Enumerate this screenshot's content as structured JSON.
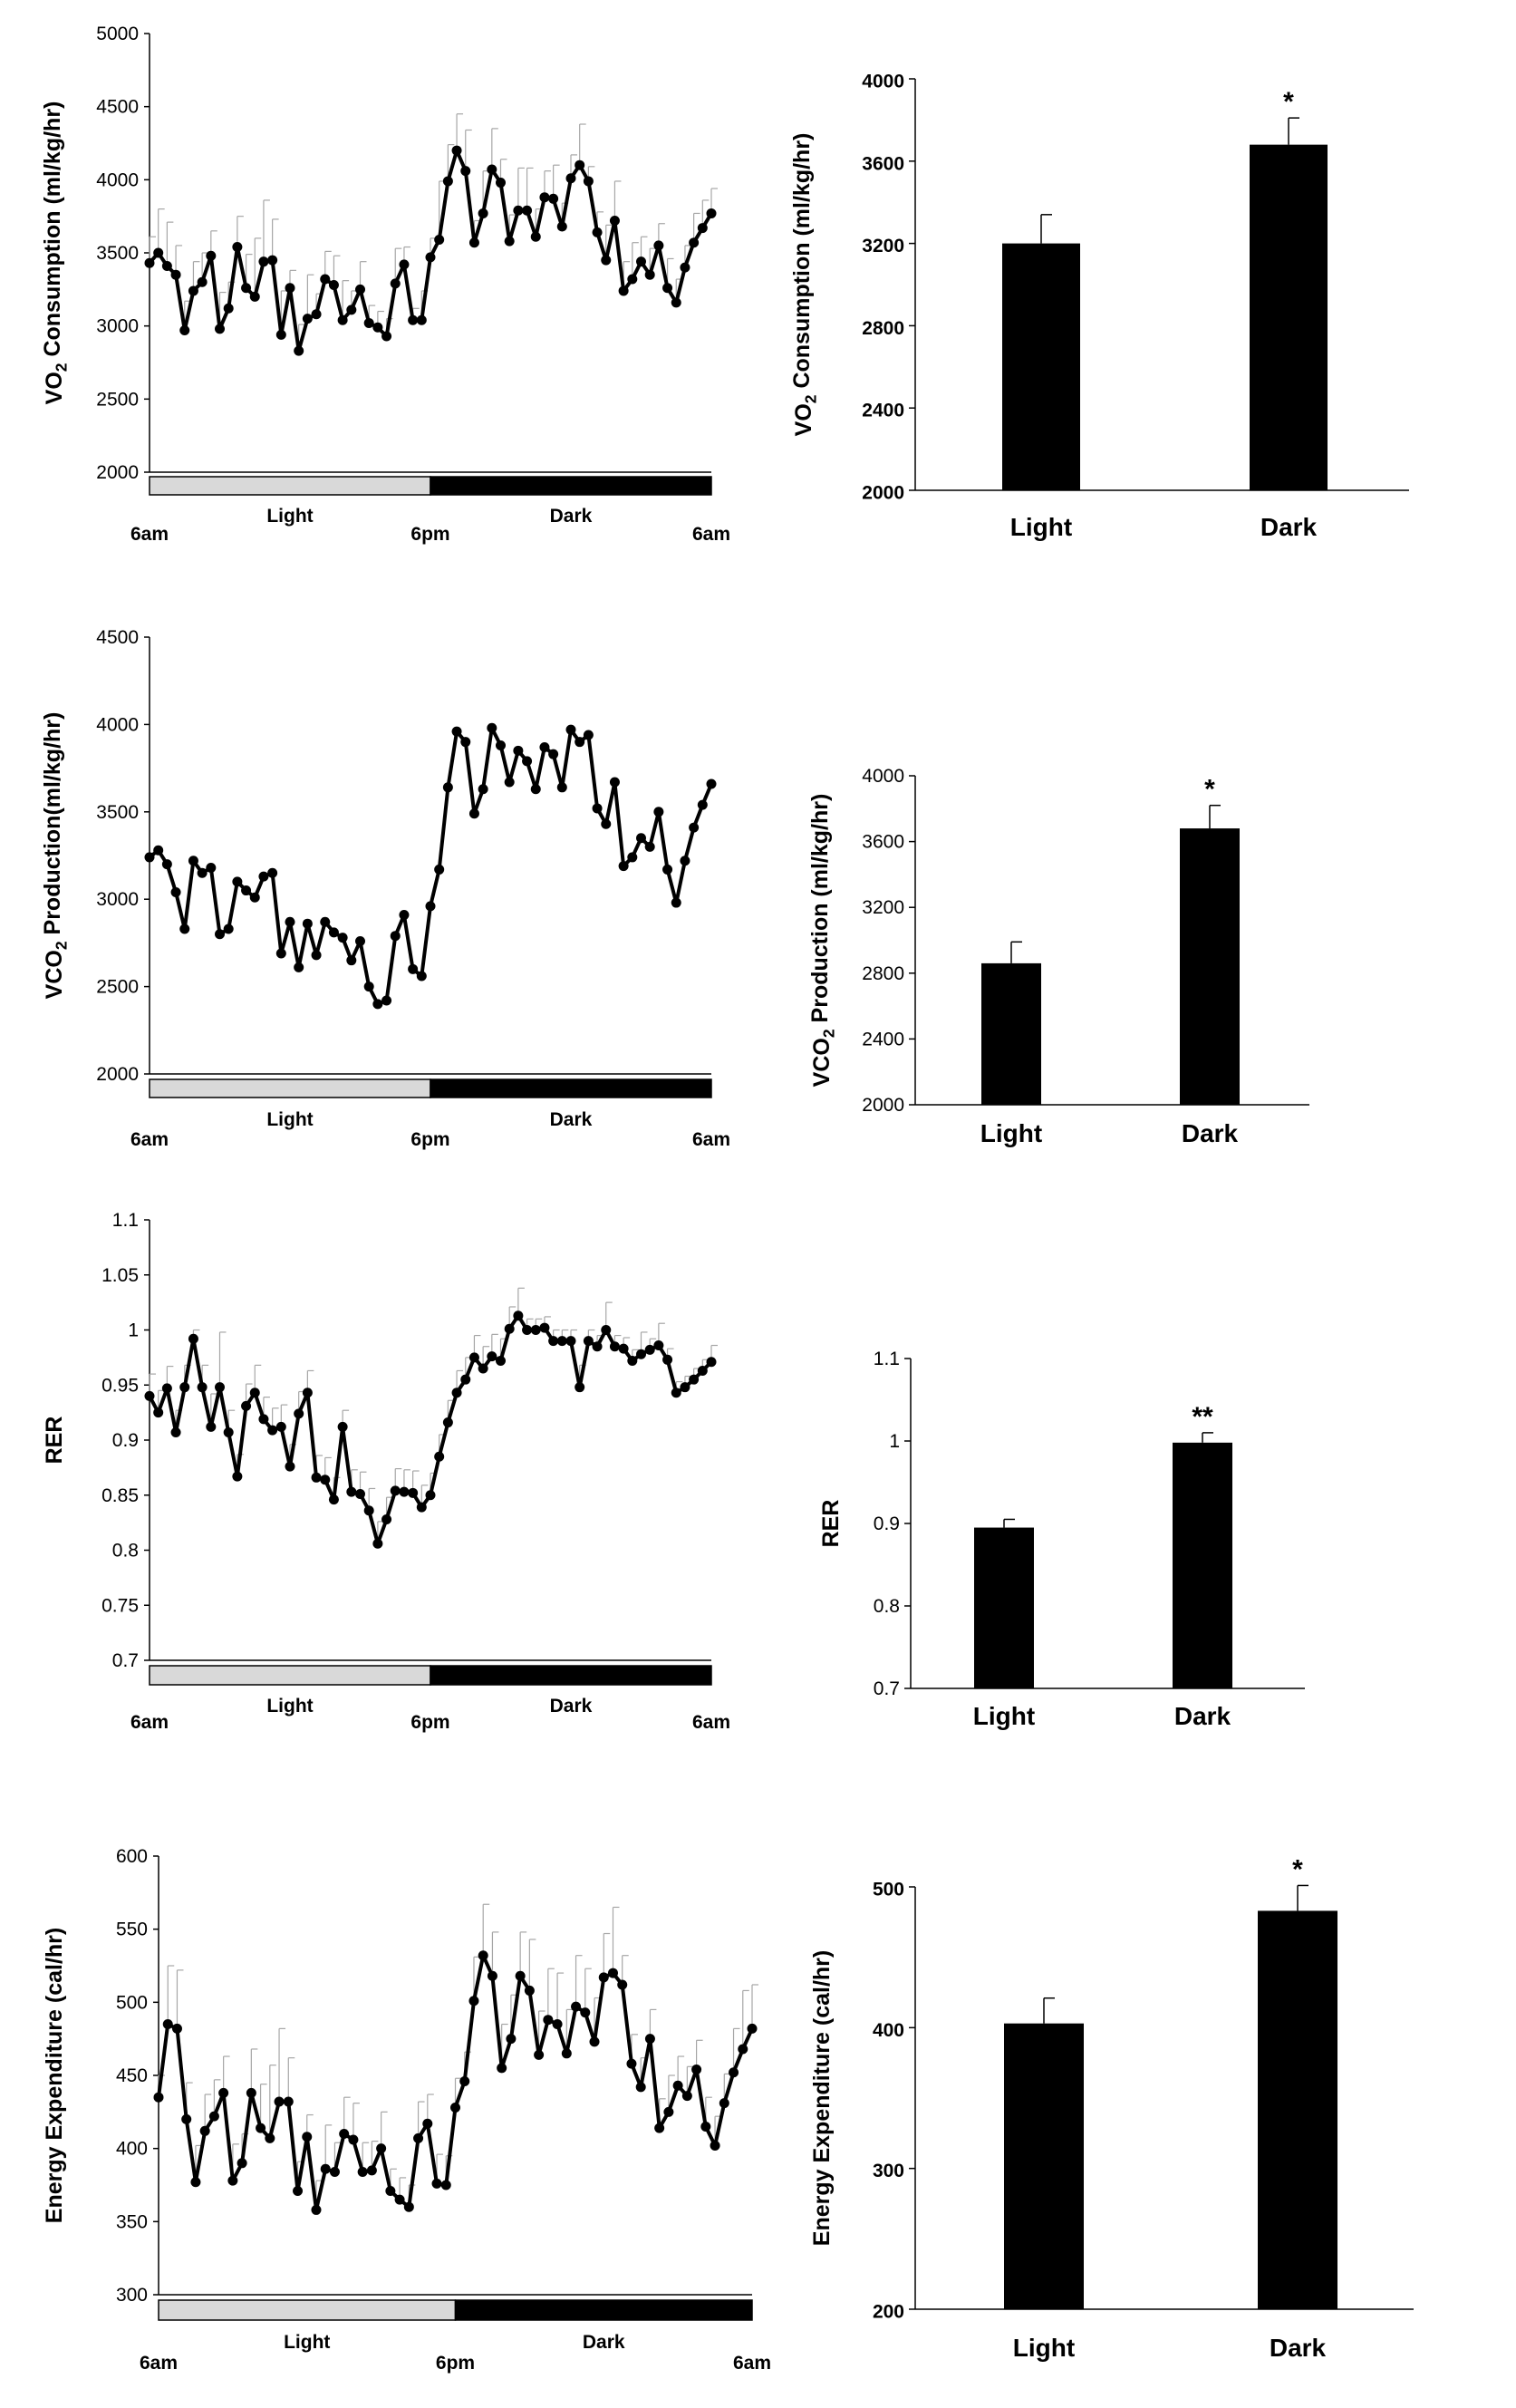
{
  "chart_data": [
    {
      "id": "vo2_time",
      "type": "line",
      "ylabel": "VO2 Consumption (ml/kg/hr)",
      "ylim": [
        2000,
        5000
      ],
      "yticks": [
        2000,
        2500,
        3000,
        3500,
        4000,
        4500,
        5000
      ],
      "x_labels": [
        "6am",
        "6pm",
        "6am"
      ],
      "phases": [
        "Light",
        "Dark"
      ],
      "error_bars": "upper",
      "values": [
        3430,
        3500,
        3410,
        3350,
        2970,
        3240,
        3300,
        3480,
        2980,
        3120,
        3540,
        3260,
        3200,
        3440,
        3450,
        2940,
        3260,
        2830,
        3050,
        3080,
        3320,
        3280,
        3040,
        3110,
        3250,
        3020,
        2990,
        2930,
        3290,
        3420,
        3040,
        3040,
        3470,
        3590,
        3990,
        4200,
        4060,
        3570,
        3770,
        4070,
        3980,
        3580,
        3790,
        3790,
        3610,
        3880,
        3870,
        3680,
        4010,
        4100,
        3990,
        3640,
        3450,
        3720,
        3240,
        3320,
        3440,
        3350,
        3550,
        3260,
        3160,
        3400,
        3570,
        3670,
        3770
      ],
      "errors": [
        180,
        300,
        300,
        200,
        200,
        200,
        200,
        170,
        250,
        180,
        210,
        230,
        400,
        420,
        280,
        300,
        120,
        180,
        300,
        140,
        190,
        200,
        270,
        130,
        190,
        120,
        110,
        120,
        240,
        120,
        80,
        200,
        130,
        400,
        250,
        250,
        280,
        150,
        290,
        280,
        160,
        180,
        290,
        290,
        190,
        180,
        230,
        160,
        160,
        280,
        100,
        140,
        240,
        270,
        200,
        250,
        170,
        180,
        150,
        200,
        160,
        150,
        200,
        190,
        170
      ]
    },
    {
      "id": "vo2_bar",
      "type": "bar",
      "ylabel": "VO2 Consumption (ml/kg/hr)",
      "ylim": [
        2000,
        4000
      ],
      "yticks": [
        2000,
        2400,
        2800,
        3200,
        3600,
        4000
      ],
      "categories": [
        "Light",
        "Dark"
      ],
      "values": [
        3200,
        3680
      ],
      "errors": [
        140,
        130
      ],
      "significance": [
        "",
        "*"
      ]
    },
    {
      "id": "vco2_time",
      "type": "line",
      "ylabel": "VCO2 Production(ml/kg/hr)",
      "ylim": [
        2000,
        4500
      ],
      "yticks": [
        2000,
        2500,
        3000,
        3500,
        4000,
        4500
      ],
      "x_labels": [
        "6am",
        "6pm",
        "6am"
      ],
      "phases": [
        "Light",
        "Dark"
      ],
      "error_bars": "upper",
      "values": [
        3240,
        3280,
        3200,
        3040,
        2830,
        3220,
        3150,
        3180,
        2800,
        2830,
        3100,
        3050,
        3010,
        3130,
        3150,
        2690,
        2870,
        2610,
        2860,
        2680,
        2870,
        2810,
        2780,
        2650,
        2760,
        2500,
        2400,
        2420,
        2790,
        2910,
        2600,
        2560,
        2960,
        3170,
        3640,
        3960,
        3900,
        3490,
        3630,
        3980,
        3880,
        3670,
        3850,
        3790,
        3630,
        3870,
        3830,
        3640,
        3970,
        3900,
        3940,
        3520,
        3430,
        3670,
        3190,
        3240,
        3350,
        3300,
        3500,
        3170,
        2980,
        3220,
        3410,
        3540,
        3660
      ]
    },
    {
      "id": "vco2_bar",
      "type": "bar",
      "ylabel": "VCO2 Production (ml/kg/hr)",
      "ylim": [
        2000,
        4000
      ],
      "yticks": [
        2000,
        2400,
        2800,
        3200,
        3600,
        4000
      ],
      "categories": [
        "Light",
        "Dark"
      ],
      "values": [
        2860,
        3680
      ],
      "errors": [
        130,
        140
      ],
      "significance": [
        "",
        "*"
      ]
    },
    {
      "id": "rer_time",
      "type": "line",
      "ylabel": "RER",
      "ylim": [
        0.7,
        1.1
      ],
      "yticks": [
        "0.7",
        "0.75",
        "0.8",
        "0.85",
        "0.9",
        "0.95",
        "1",
        "1.05",
        "1.1"
      ],
      "x_labels": [
        "6am",
        "6pm",
        "6am"
      ],
      "phases": [
        "Light",
        "Dark"
      ],
      "error_bars": "upper",
      "values": [
        0.94,
        0.925,
        0.947,
        0.907,
        0.948,
        0.992,
        0.948,
        0.912,
        0.948,
        0.907,
        0.867,
        0.931,
        0.943,
        0.919,
        0.909,
        0.912,
        0.876,
        0.924,
        0.943,
        0.866,
        0.864,
        0.846,
        0.912,
        0.853,
        0.851,
        0.836,
        0.806,
        0.828,
        0.854,
        0.853,
        0.852,
        0.839,
        0.85,
        0.885,
        0.916,
        0.943,
        0.955,
        0.975,
        0.965,
        0.976,
        0.972,
        1.001,
        1.013,
        1.0,
        1.0,
        1.002,
        0.99,
        0.99,
        0.99,
        0.948,
        0.99,
        0.985,
        1.0,
        0.985,
        0.983,
        0.972,
        0.978,
        0.982,
        0.986,
        0.973,
        0.943,
        0.948,
        0.955,
        0.963,
        0.971
      ],
      "errors": [
        0.02,
        0.02,
        0.02,
        0.02,
        0.02,
        0.008,
        0.02,
        0.03,
        0.05,
        0.02,
        0.02,
        0.02,
        0.025,
        0.02,
        0.02,
        0.02,
        0.02,
        0.02,
        0.02,
        0.02,
        0.02,
        0.02,
        0.015,
        0.02,
        0.02,
        0.02,
        0.02,
        0.02,
        0.02,
        0.02,
        0.02,
        0.02,
        0.02,
        0.02,
        0.02,
        0.02,
        0.02,
        0.02,
        0.02,
        0.02,
        0.02,
        0.02,
        0.025,
        0.01,
        0.01,
        0.01,
        0.01,
        0.01,
        0.01,
        0.02,
        0.01,
        0.01,
        0.025,
        0.01,
        0.01,
        0.01,
        0.02,
        0.01,
        0.02,
        0.01,
        0.01,
        0.01,
        0.01,
        0.01,
        0.015
      ]
    },
    {
      "id": "rer_bar",
      "type": "bar",
      "ylabel": "RER",
      "ylim": [
        0.7,
        1.1
      ],
      "yticks": [
        "0.7",
        "0.8",
        "0.9",
        "1",
        "1.1"
      ],
      "categories": [
        "Light",
        "Dark"
      ],
      "values": [
        0.895,
        0.998
      ],
      "errors": [
        0.01,
        0.012
      ],
      "significance": [
        "",
        "**"
      ]
    },
    {
      "id": "ee_time",
      "type": "line",
      "ylabel": "Energy Expenditure (cal/hr)",
      "ylim": [
        300,
        600
      ],
      "yticks": [
        300,
        350,
        400,
        450,
        500,
        550,
        600
      ],
      "x_labels": [
        "6am",
        "6pm",
        "6am"
      ],
      "phases": [
        "Light",
        "Dark"
      ],
      "error_bars": "upper",
      "values": [
        435,
        485,
        482,
        420,
        377,
        412,
        422,
        438,
        378,
        390,
        438,
        414,
        407,
        432,
        432,
        371,
        408,
        358,
        386,
        384,
        410,
        406,
        384,
        385,
        400,
        371,
        365,
        360,
        407,
        417,
        376,
        375,
        428,
        446,
        501,
        532,
        518,
        455,
        475,
        518,
        508,
        464,
        488,
        485,
        465,
        497,
        493,
        473,
        517,
        520,
        512,
        458,
        442,
        475,
        414,
        425,
        443,
        436,
        454,
        415,
        402,
        431,
        452,
        468,
        482
      ],
      "errors": [
        15,
        40,
        40,
        25,
        25,
        25,
        25,
        25,
        25,
        20,
        30,
        30,
        50,
        50,
        30,
        20,
        15,
        20,
        30,
        20,
        25,
        25,
        20,
        20,
        25,
        15,
        15,
        15,
        25,
        20,
        20,
        20,
        20,
        20,
        30,
        35,
        30,
        30,
        30,
        30,
        35,
        30,
        35,
        35,
        30,
        35,
        30,
        30,
        30,
        45,
        20,
        20,
        20,
        20,
        20,
        25,
        20,
        20,
        20,
        20,
        20,
        20,
        30,
        40,
        30
      ]
    },
    {
      "id": "ee_bar",
      "type": "bar",
      "ylabel": "Energy Expenditure (cal/hr)",
      "ylim": [
        200,
        500
      ],
      "yticks": [
        200,
        300,
        400,
        500
      ],
      "categories": [
        "Light",
        "Dark"
      ],
      "values": [
        403,
        483
      ],
      "errors": [
        18,
        18
      ],
      "significance": [
        "",
        "*"
      ]
    }
  ]
}
